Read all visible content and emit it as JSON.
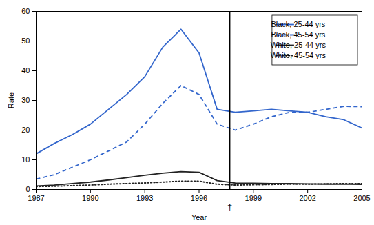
{
  "chart_data": {
    "type": "line",
    "xlabel": "Year",
    "ylabel": "Rate",
    "x": [
      1987,
      1988,
      1989,
      1990,
      1991,
      1992,
      1993,
      1994,
      1995,
      1996,
      1997,
      1998,
      1999,
      2000,
      2001,
      2002,
      2003,
      2004,
      2005
    ],
    "xlim": [
      1987,
      2005
    ],
    "xticks": [
      1987,
      1990,
      1993,
      1996,
      1999,
      2002,
      2005
    ],
    "ylim": [
      0,
      60
    ],
    "yticks": [
      0,
      10,
      20,
      30,
      40,
      50,
      60
    ],
    "grid": false,
    "legend": "upper right",
    "series": [
      {
        "name": "Black, 25-44 yrs",
        "color": "#3366CC",
        "line_style": "solid",
        "values": [
          12.0,
          15.5,
          18.5,
          22.0,
          27.0,
          32.0,
          38.0,
          48.0,
          54.0,
          46.0,
          27.0,
          26.0,
          26.5,
          27.0,
          26.5,
          26.0,
          24.5,
          23.5,
          20.7
        ]
      },
      {
        "name": "Black, 45-54 yrs",
        "color": "#3366CC",
        "line_style": "dashed",
        "values": [
          3.5,
          5.0,
          7.5,
          10.0,
          13.0,
          16.0,
          22.0,
          29.0,
          35.0,
          32.0,
          22.0,
          20.0,
          22.0,
          24.5,
          26.0,
          26.0,
          27.0,
          28.0,
          27.9
        ]
      },
      {
        "name": "White, 25-44 yrs",
        "color": "#222222",
        "line_style": "solid",
        "values": [
          1.2,
          1.5,
          2.0,
          2.5,
          3.2,
          4.0,
          4.8,
          5.5,
          6.0,
          5.8,
          3.0,
          2.2,
          2.1,
          2.0,
          2.0,
          1.9,
          1.8,
          1.8,
          1.7
        ]
      },
      {
        "name": "White, 45-54 yrs",
        "color": "#222222",
        "line_style": "dotted",
        "values": [
          1.0,
          1.1,
          1.3,
          1.5,
          1.8,
          2.0,
          2.2,
          2.5,
          2.8,
          2.8,
          1.8,
          1.5,
          1.6,
          1.7,
          1.8,
          1.8,
          1.9,
          2.0,
          2.0
        ]
      }
    ],
    "annotations": [
      {
        "type": "vline",
        "x": 1997.7,
        "text": "†"
      }
    ]
  }
}
